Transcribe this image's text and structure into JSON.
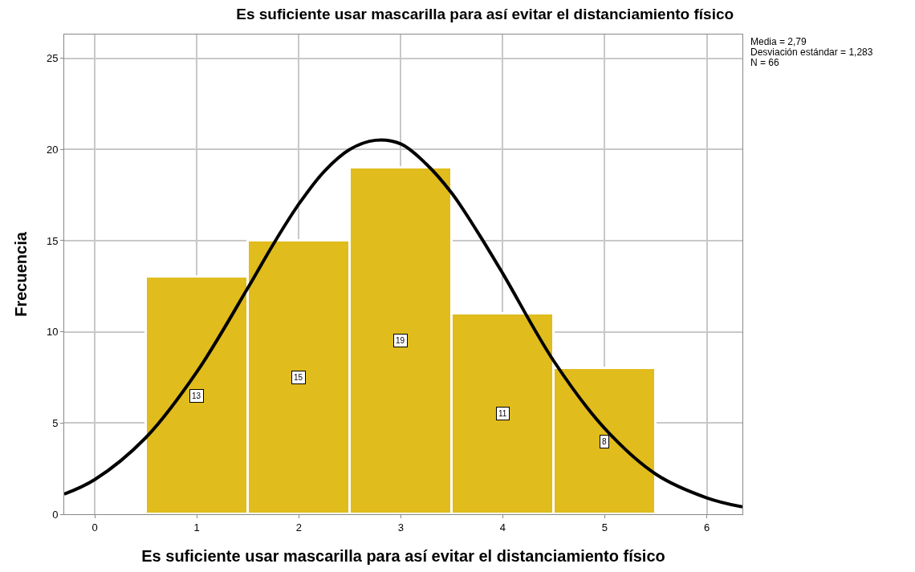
{
  "chart_data": {
    "type": "histogram",
    "title": "Es suficiente usar mascarilla para así evitar el distanciamiento físico",
    "xlabel": "Es suficiente usar mascarilla para así evitar el distanciamiento físico",
    "ylabel": "Frecuencia",
    "bins": [
      0.5,
      1.5,
      2.5,
      3.5,
      4.5,
      5.5
    ],
    "values": [
      13,
      15,
      19,
      11,
      8
    ],
    "color": "#e0bc1c",
    "value_labels": [
      "13",
      "15",
      "19",
      "11",
      "8"
    ],
    "series": [
      {
        "type": "line",
        "color": "#000000",
        "x": [
          -0.3,
          0,
          0.5,
          1,
          1.5,
          1.75,
          2,
          2.25,
          2.5,
          2.75,
          3,
          3.25,
          3.5,
          3.75,
          4,
          4.5,
          5,
          5.5,
          6,
          6.35
        ],
        "values": [
          1.1,
          1.9,
          4.2,
          7.8,
          12.4,
          14.8,
          17.0,
          18.8,
          20.0,
          20.5,
          20.3,
          19.2,
          17.6,
          15.5,
          13.2,
          8.4,
          4.7,
          2.2,
          0.9,
          0.4
        ]
      }
    ],
    "xlim": [
      -0.3,
      6.35
    ],
    "xticks": [
      0,
      1,
      2,
      3,
      4,
      5,
      6
    ],
    "ylim": [
      0,
      26.3
    ],
    "yticks": [
      0,
      5,
      10,
      15,
      20,
      25
    ],
    "grid": true,
    "marker": "none",
    "line_style": "solid",
    "annotations": [
      "Media = 2,79",
      "Desviación estándar = 1,283",
      "N = 66"
    ]
  }
}
